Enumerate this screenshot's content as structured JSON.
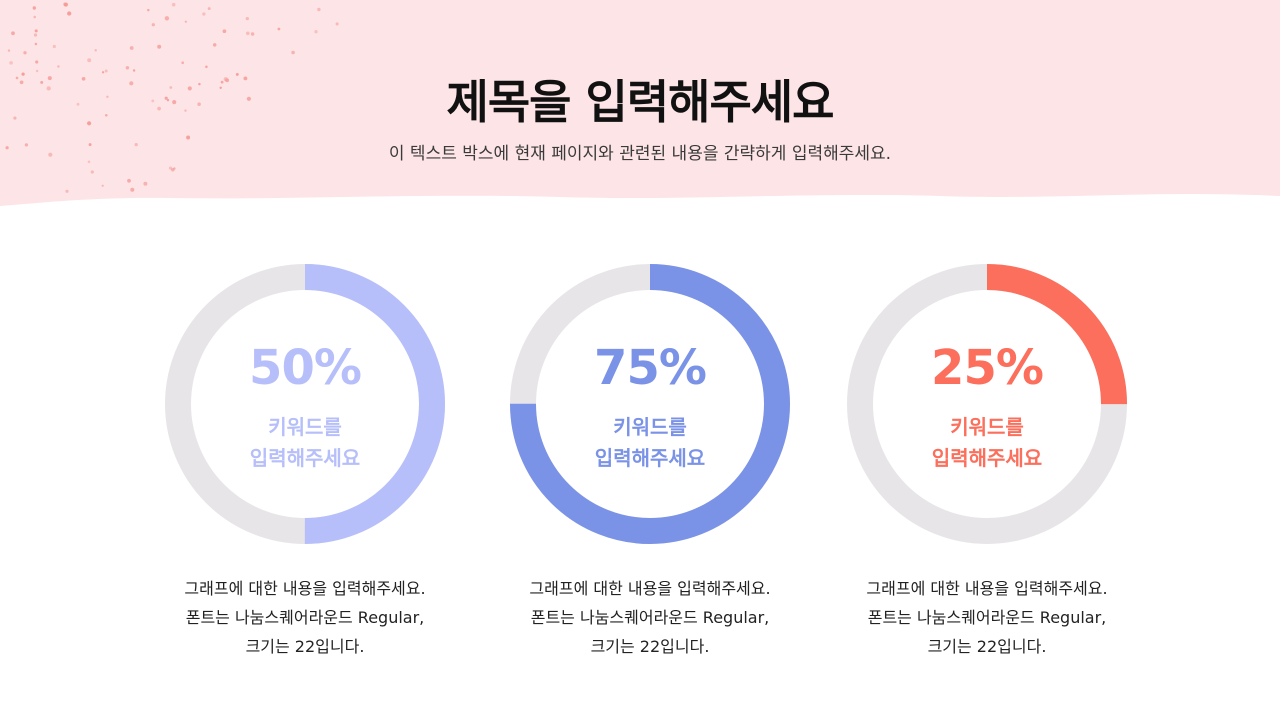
{
  "header": {
    "title": "제목을 입력해주세요",
    "subtitle": "이 텍스트 박스에 현재 페이지와 관련된 내용을 간략하게 입력해주세요."
  },
  "cards": [
    {
      "percent": 50,
      "percent_label": "50%",
      "keyword_line1": "키워드를",
      "keyword_line2": "입력해주세요",
      "desc_line1": "그래프에 대한 내용을 입력해주세요.",
      "desc_line2": "폰트는 나눔스퀘어라운드 Regular,",
      "desc_line3": "크기는 22입니다.",
      "color": "#b6bffa"
    },
    {
      "percent": 75,
      "percent_label": "75%",
      "keyword_line1": "키워드를",
      "keyword_line2": "입력해주세요",
      "desc_line1": "그래프에 대한 내용을 입력해주세요.",
      "desc_line2": "폰트는 나눔스퀘어라운드 Regular,",
      "desc_line3": "크기는 22입니다.",
      "color": "#7b93e6"
    },
    {
      "percent": 25,
      "percent_label": "25%",
      "keyword_line1": "키워드를",
      "keyword_line2": "입력해주세요",
      "desc_line1": "그래프에 대한 내용을 입력해주세요.",
      "desc_line2": "폰트는 나눔스퀘어라운드 Regular,",
      "desc_line3": "크기는 22입니다.",
      "color": "#fb6f5c"
    }
  ],
  "colors": {
    "header_band": "#fde4e6",
    "dots": "#f59a96",
    "ring_track": "#e7e5e8"
  }
}
